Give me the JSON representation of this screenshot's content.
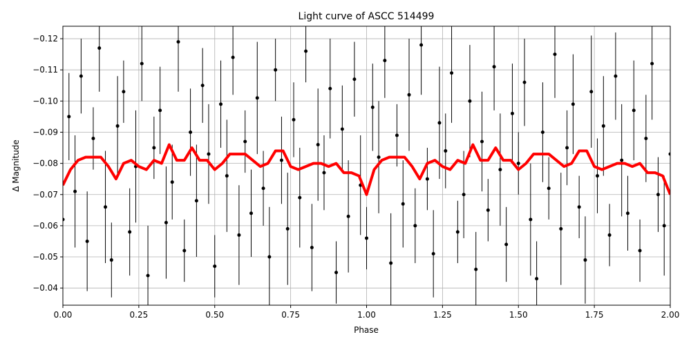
{
  "chart_data": {
    "type": "errorbar",
    "title": "Light curve of ASCC 514499",
    "xlabel": "Phase",
    "ylabel": "Δ Magnitude",
    "xlim": [
      0,
      2
    ],
    "ylim": [
      -0.0345,
      -0.124
    ],
    "xticks": [
      {
        "value": 0,
        "label": "0.00"
      },
      {
        "value": 0.25,
        "label": "0.25"
      },
      {
        "value": 0.5,
        "label": "0.50"
      },
      {
        "value": 0.75,
        "label": "0.75"
      },
      {
        "value": 1,
        "label": "1.00"
      },
      {
        "value": 1.25,
        "label": "1.25"
      },
      {
        "value": 1.5,
        "label": "1.50"
      },
      {
        "value": 1.75,
        "label": "1.75"
      },
      {
        "value": 2,
        "label": "2.00"
      }
    ],
    "yticks": [
      {
        "value": -0.12,
        "label": "−0.12"
      },
      {
        "value": -0.11,
        "label": "−0.11"
      },
      {
        "value": -0.1,
        "label": "−0.10"
      },
      {
        "value": -0.09,
        "label": "−0.09"
      },
      {
        "value": -0.08,
        "label": "−0.08"
      },
      {
        "value": -0.07,
        "label": "−0.07"
      },
      {
        "value": -0.06,
        "label": "−0.06"
      },
      {
        "value": -0.05,
        "label": "−0.05"
      },
      {
        "value": -0.04,
        "label": "−0.04"
      }
    ],
    "grid": true,
    "series": [
      {
        "style": "errorbar",
        "color": "#000000",
        "x": [
          0,
          0.02,
          0.04,
          0.06,
          0.08,
          0.1,
          0.12,
          0.14,
          0.16,
          0.18,
          0.2,
          0.22,
          0.24,
          0.26,
          0.28,
          0.3,
          0.32,
          0.34,
          0.36,
          0.38,
          0.4,
          0.42,
          0.44,
          0.46,
          0.48,
          0.5,
          0.52,
          0.54,
          0.56,
          0.58,
          0.6,
          0.62,
          0.64,
          0.66,
          0.68,
          0.7,
          0.72,
          0.74,
          0.76,
          0.78,
          0.8,
          0.82,
          0.84,
          0.86,
          0.88,
          0.9,
          0.92,
          0.94,
          0.96,
          0.98,
          1,
          1.02,
          1.04,
          1.06,
          1.08,
          1.1,
          1.12,
          1.14,
          1.16,
          1.18,
          1.2,
          1.22,
          1.24,
          1.26,
          1.28,
          1.3,
          1.32,
          1.34,
          1.36,
          1.38,
          1.4,
          1.42,
          1.44,
          1.46,
          1.48,
          1.5,
          1.52,
          1.54,
          1.56,
          1.58,
          1.6,
          1.62,
          1.64,
          1.66,
          1.68,
          1.7,
          1.72,
          1.74,
          1.76,
          1.78,
          1.8,
          1.82,
          1.84,
          1.86,
          1.88,
          1.9,
          1.92,
          1.94,
          1.96,
          1.98,
          2
        ],
        "values": [
          -0.062,
          -0.095,
          -0.071,
          -0.108,
          -0.055,
          -0.088,
          -0.117,
          -0.066,
          -0.049,
          -0.092,
          -0.103,
          -0.058,
          -0.079,
          -0.112,
          -0.044,
          -0.085,
          -0.097,
          -0.061,
          -0.074,
          -0.119,
          -0.052,
          -0.09,
          -0.068,
          -0.105,
          -0.083,
          -0.047,
          -0.099,
          -0.076,
          -0.114,
          -0.057,
          -0.087,
          -0.064,
          -0.101,
          -0.072,
          -0.05,
          -0.11,
          -0.081,
          -0.059,
          -0.094,
          -0.069,
          -0.116,
          -0.053,
          -0.086,
          -0.077,
          -0.104,
          -0.045,
          -0.091,
          -0.063,
          -0.107,
          -0.073,
          -0.056,
          -0.098,
          -0.082,
          -0.113,
          -0.048,
          -0.089,
          -0.067,
          -0.102,
          -0.06,
          -0.118,
          -0.075,
          -0.051,
          -0.093,
          -0.084,
          -0.109,
          -0.058,
          -0.07,
          -0.1,
          -0.046,
          -0.087,
          -0.065,
          -0.111,
          -0.078,
          -0.054,
          -0.096,
          -0.08,
          -0.106,
          -0.062,
          -0.043,
          -0.09,
          -0.072,
          -0.115,
          -0.059,
          -0.085,
          -0.099,
          -0.066,
          -0.049,
          -0.103,
          -0.076,
          -0.092,
          -0.057,
          -0.108,
          -0.081,
          -0.064,
          -0.097,
          -0.052,
          -0.088,
          -0.112,
          -0.07,
          -0.06,
          -0.083
        ],
        "errors": [
          0.01,
          0.014,
          0.018,
          0.012,
          0.016,
          0.01,
          0.014,
          0.018,
          0.012,
          0.016,
          0.01,
          0.014,
          0.018,
          0.012,
          0.016,
          0.01,
          0.014,
          0.018,
          0.012,
          0.016,
          0.01,
          0.014,
          0.018,
          0.012,
          0.016,
          0.01,
          0.014,
          0.018,
          0.012,
          0.016,
          0.01,
          0.014,
          0.018,
          0.012,
          0.016,
          0.01,
          0.014,
          0.018,
          0.012,
          0.016,
          0.01,
          0.014,
          0.018,
          0.012,
          0.016,
          0.01,
          0.014,
          0.018,
          0.012,
          0.016,
          0.01,
          0.014,
          0.018,
          0.012,
          0.016,
          0.01,
          0.014,
          0.018,
          0.012,
          0.016,
          0.01,
          0.014,
          0.018,
          0.012,
          0.016,
          0.01,
          0.014,
          0.018,
          0.012,
          0.016,
          0.01,
          0.014,
          0.018,
          0.012,
          0.016,
          0.01,
          0.014,
          0.018,
          0.012,
          0.016,
          0.01,
          0.014,
          0.018,
          0.012,
          0.016,
          0.01,
          0.014,
          0.018,
          0.012,
          0.016,
          0.01,
          0.014,
          0.018,
          0.012,
          0.016,
          0.01,
          0.014,
          0.018,
          0.012,
          0.016,
          0.01
        ]
      },
      {
        "style": "line",
        "color": "#ff0000",
        "x": [
          0,
          0.025,
          0.05,
          0.075,
          0.1,
          0.125,
          0.15,
          0.175,
          0.2,
          0.225,
          0.25,
          0.275,
          0.3,
          0.325,
          0.35,
          0.375,
          0.4,
          0.425,
          0.45,
          0.475,
          0.5,
          0.525,
          0.55,
          0.575,
          0.6,
          0.625,
          0.65,
          0.675,
          0.7,
          0.725,
          0.75,
          0.775,
          0.8,
          0.825,
          0.85,
          0.875,
          0.9,
          0.925,
          0.95,
          0.975,
          1,
          1.025,
          1.05,
          1.075,
          1.1,
          1.125,
          1.15,
          1.175,
          1.2,
          1.225,
          1.25,
          1.275,
          1.3,
          1.325,
          1.35,
          1.375,
          1.4,
          1.425,
          1.45,
          1.475,
          1.5,
          1.525,
          1.55,
          1.575,
          1.6,
          1.625,
          1.65,
          1.675,
          1.7,
          1.725,
          1.75,
          1.775,
          1.8,
          1.825,
          1.85,
          1.875,
          1.9,
          1.925,
          1.95,
          1.975,
          2
        ],
        "values": [
          -0.073,
          -0.078,
          -0.081,
          -0.082,
          -0.082,
          -0.082,
          -0.079,
          -0.075,
          -0.08,
          -0.081,
          -0.079,
          -0.078,
          -0.081,
          -0.08,
          -0.086,
          -0.081,
          -0.081,
          -0.085,
          -0.081,
          -0.081,
          -0.078,
          -0.08,
          -0.083,
          -0.083,
          -0.083,
          -0.081,
          -0.079,
          -0.08,
          -0.084,
          -0.084,
          -0.079,
          -0.078,
          -0.079,
          -0.08,
          -0.08,
          -0.079,
          -0.08,
          -0.077,
          -0.077,
          -0.076,
          -0.07,
          -0.078,
          -0.081,
          -0.082,
          -0.082,
          -0.082,
          -0.079,
          -0.075,
          -0.08,
          -0.081,
          -0.079,
          -0.078,
          -0.081,
          -0.08,
          -0.086,
          -0.081,
          -0.081,
          -0.085,
          -0.081,
          -0.081,
          -0.078,
          -0.08,
          -0.083,
          -0.083,
          -0.083,
          -0.081,
          -0.079,
          -0.08,
          -0.084,
          -0.084,
          -0.079,
          -0.078,
          -0.079,
          -0.08,
          -0.08,
          -0.079,
          -0.08,
          -0.077,
          -0.077,
          -0.076,
          -0.07
        ]
      }
    ]
  }
}
